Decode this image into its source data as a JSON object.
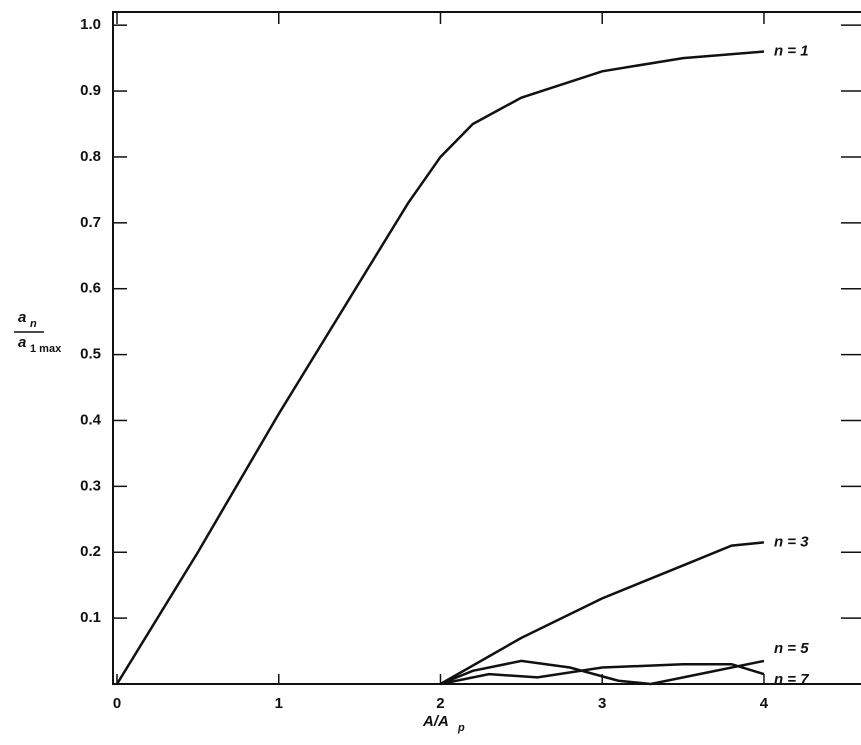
{
  "chart_data": {
    "type": "line",
    "xlabel": "A/A",
    "xlabel_sub": "p",
    "ylabel": {
      "top": "a",
      "top_sub": "n",
      "bottom": "a",
      "bottom_sub": "1 max"
    },
    "xlim": [
      0,
      4.6
    ],
    "ylim": [
      0,
      1.02
    ],
    "xticks": [
      0,
      1,
      2,
      3,
      4
    ],
    "yticks": [
      0.1,
      0.2,
      0.3,
      0.4,
      0.5,
      0.6,
      0.7,
      0.8,
      0.9,
      {
        "value": 1.0,
        "label": "1.0"
      }
    ],
    "grid": false,
    "series": [
      {
        "name": "n = 1",
        "color": "#111111",
        "x": [
          0,
          0.5,
          1,
          1.5,
          1.8,
          2,
          2.2,
          2.5,
          3,
          3.5,
          4
        ],
        "values": [
          0,
          0.2,
          0.41,
          0.61,
          0.73,
          0.8,
          0.85,
          0.89,
          0.93,
          0.95,
          0.96
        ]
      },
      {
        "name": "n = 3",
        "color": "#111111",
        "x": [
          2,
          2.5,
          3,
          3.5,
          3.8,
          4
        ],
        "values": [
          0,
          0.07,
          0.13,
          0.18,
          0.21,
          0.215
        ]
      },
      {
        "name": "n = 5",
        "color": "#111111",
        "x": [
          2,
          2.2,
          2.5,
          2.8,
          3.1,
          3.3,
          3.6,
          4
        ],
        "values": [
          0,
          0.02,
          0.035,
          0.025,
          0.005,
          0,
          0.015,
          0.035
        ]
      },
      {
        "name": "n = 7",
        "color": "#111111",
        "x": [
          2,
          2.3,
          2.6,
          3,
          3.5,
          3.8,
          4
        ],
        "values": [
          0,
          0.015,
          0.01,
          0.025,
          0.03,
          0.03,
          0.015
        ]
      }
    ]
  }
}
